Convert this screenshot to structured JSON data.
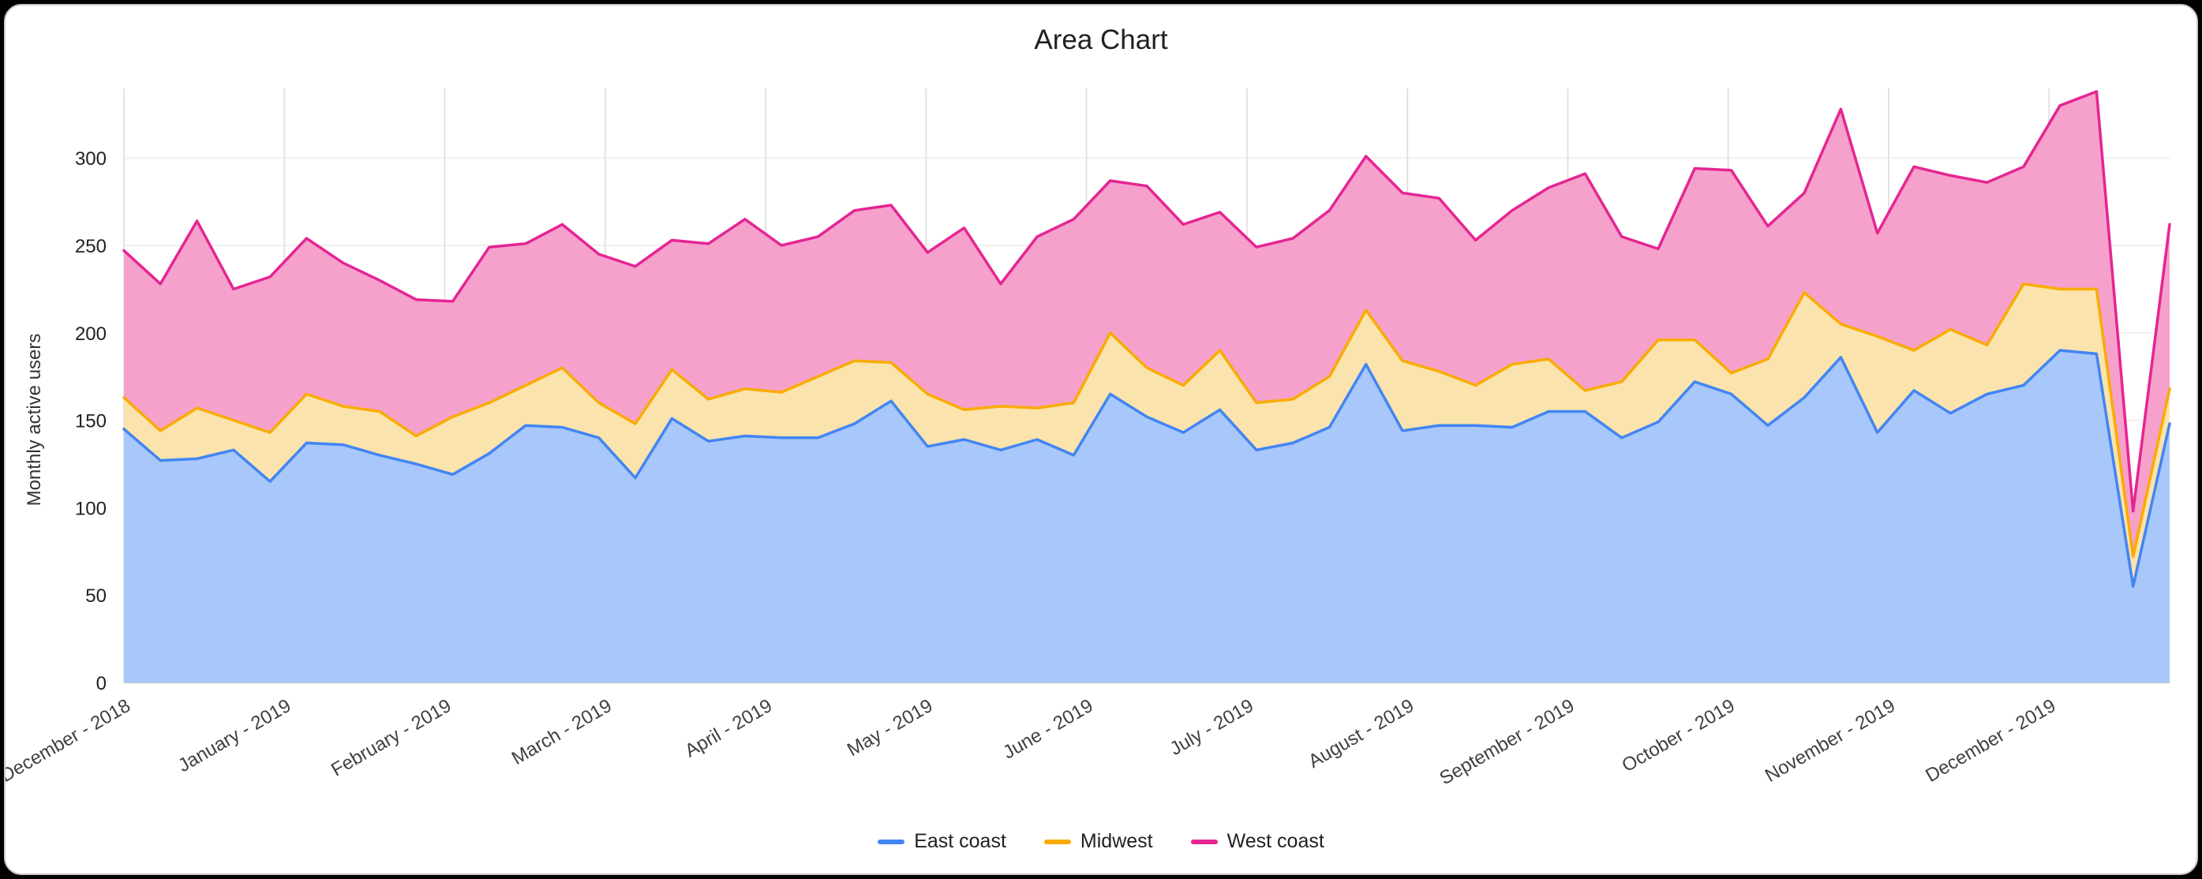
{
  "page": {
    "background_color": "#000000",
    "card_background": "#ffffff"
  },
  "chart_data": {
    "type": "area",
    "stacked": true,
    "title": "Area Chart",
    "xlabel": "",
    "ylabel": "Monthly active users",
    "ylim": [
      0,
      345
    ],
    "yticks": [
      0,
      50,
      100,
      150,
      200,
      250,
      300
    ],
    "grid": true,
    "legend_position": "bottom",
    "x_tick_labels": [
      "December - 2018",
      "January - 2019",
      "February - 2019",
      "March - 2019",
      "April - 2019",
      "May - 2019",
      "June - 2019",
      "July - 2019",
      "August - 2019",
      "September - 2019",
      "October - 2019",
      "November - 2019",
      "December - 2019"
    ],
    "series": [
      {
        "name": "East coast",
        "color": "#4285F4",
        "fill": "#A8C7FA",
        "values": [
          145,
          127,
          128,
          133,
          115,
          137,
          136,
          130,
          125,
          119,
          131,
          147,
          146,
          140,
          117,
          151,
          138,
          141,
          140,
          140,
          148,
          161,
          135,
          139,
          133,
          139,
          130,
          165,
          152,
          143,
          156,
          133,
          137,
          146,
          182,
          144,
          147,
          147,
          146,
          155,
          155,
          140,
          149,
          172,
          165,
          147,
          163,
          186,
          143,
          167,
          154,
          165,
          170,
          190,
          188,
          55,
          148
        ]
      },
      {
        "name": "Midwest",
        "color": "#F9AB00",
        "fill": "#FAE3AC",
        "values": [
          18,
          17,
          29,
          17,
          28,
          28,
          22,
          25,
          16,
          33,
          29,
          23,
          34,
          20,
          31,
          28,
          24,
          27,
          26,
          35,
          36,
          22,
          30,
          17,
          25,
          18,
          30,
          35,
          28,
          27,
          34,
          27,
          25,
          29,
          31,
          40,
          31,
          23,
          36,
          30,
          12,
          32,
          47,
          24,
          12,
          38,
          60,
          19,
          55,
          23,
          48,
          28,
          58,
          35,
          37,
          17,
          20
        ]
      },
      {
        "name": "West coast",
        "color": "#E52592",
        "fill": "#F5A1CC",
        "values": [
          84,
          84,
          107,
          75,
          89,
          89,
          82,
          75,
          78,
          66,
          89,
          81,
          82,
          85,
          90,
          74,
          89,
          97,
          84,
          80,
          86,
          90,
          81,
          104,
          70,
          98,
          105,
          87,
          104,
          92,
          79,
          89,
          92,
          95,
          88,
          96,
          99,
          83,
          88,
          98,
          124,
          83,
          52,
          98,
          116,
          76,
          57,
          123,
          59,
          105,
          88,
          93,
          67,
          105,
          113,
          26,
          94
        ]
      }
    ]
  }
}
